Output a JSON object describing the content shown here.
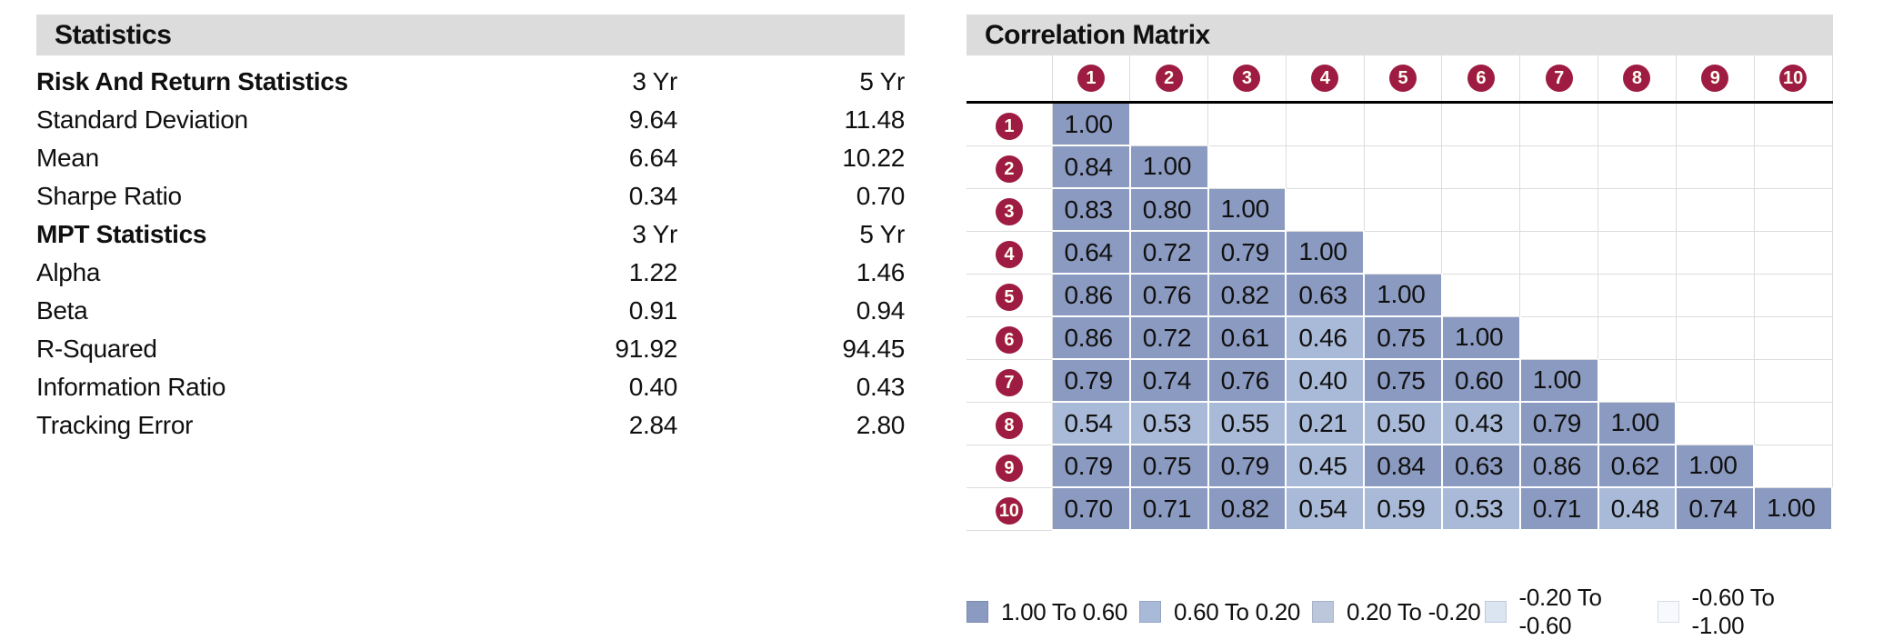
{
  "statistics_panel": {
    "title": "Statistics",
    "sections": [
      {
        "header": "Risk And Return Statistics",
        "columns": [
          "3 Yr",
          "5 Yr"
        ],
        "rows": [
          {
            "label": "Standard Deviation",
            "values": [
              "9.64",
              "11.48"
            ]
          },
          {
            "label": "Mean",
            "values": [
              "6.64",
              "10.22"
            ]
          },
          {
            "label": "Sharpe Ratio",
            "values": [
              "0.34",
              "0.70"
            ]
          }
        ]
      },
      {
        "header": "MPT Statistics",
        "columns": [
          "3 Yr",
          "5 Yr"
        ],
        "rows": [
          {
            "label": "Alpha",
            "values": [
              "1.22",
              "1.46"
            ]
          },
          {
            "label": "Beta",
            "values": [
              "0.91",
              "0.94"
            ]
          },
          {
            "label": "R-Squared",
            "values": [
              "91.92",
              "94.45"
            ]
          },
          {
            "label": "Information Ratio",
            "values": [
              "0.40",
              "0.43"
            ]
          },
          {
            "label": "Tracking Error",
            "values": [
              "2.84",
              "2.80"
            ]
          }
        ]
      }
    ]
  },
  "correlation_panel": {
    "title": "Correlation Matrix",
    "circle_color": "#9e1b42",
    "circle_text_color": "#fffef2",
    "legend": [
      {
        "label": "1.00 To 0.60",
        "color": "#8b9ac1"
      },
      {
        "label": "0.60 To 0.20",
        "color": "#a9bad8"
      },
      {
        "label": "0.20 To -0.20",
        "color": "#bcc7dc"
      },
      {
        "label": "-0.20 To -0.60",
        "color": "#dbe4f1"
      },
      {
        "label": "-0.60 To -1.00",
        "color": "#f7f9fc"
      }
    ]
  },
  "chart_data": {
    "type": "heatmap",
    "title": "Correlation Matrix",
    "categories": [
      "1",
      "2",
      "3",
      "4",
      "5",
      "6",
      "7",
      "8",
      "9",
      "10"
    ],
    "matrix": [
      [
        "1.00"
      ],
      [
        "0.84",
        "1.00"
      ],
      [
        "0.83",
        "0.80",
        "1.00"
      ],
      [
        "0.64",
        "0.72",
        "0.79",
        "1.00"
      ],
      [
        "0.86",
        "0.76",
        "0.82",
        "0.63",
        "1.00"
      ],
      [
        "0.86",
        "0.72",
        "0.61",
        "0.46",
        "0.75",
        "1.00"
      ],
      [
        "0.79",
        "0.74",
        "0.76",
        "0.40",
        "0.75",
        "0.60",
        "1.00"
      ],
      [
        "0.54",
        "0.53",
        "0.55",
        "0.21",
        "0.50",
        "0.43",
        "0.79",
        "1.00"
      ],
      [
        "0.79",
        "0.75",
        "0.79",
        "0.45",
        "0.84",
        "0.63",
        "0.86",
        "0.62",
        "1.00"
      ],
      [
        "0.70",
        "0.71",
        "0.82",
        "0.54",
        "0.59",
        "0.53",
        "0.71",
        "0.48",
        "0.74",
        "1.00"
      ]
    ],
    "color_bucket_thresholds": [
      0.6,
      0.2,
      -0.2,
      -0.6
    ],
    "legend_labels": [
      "1.00 To 0.60",
      "0.60 To 0.20",
      "0.20 To -0.20",
      "-0.20 To -0.60",
      "-0.60 To -1.00"
    ],
    "legend_position": "bottom",
    "value_range": [
      -1.0,
      1.0
    ]
  }
}
